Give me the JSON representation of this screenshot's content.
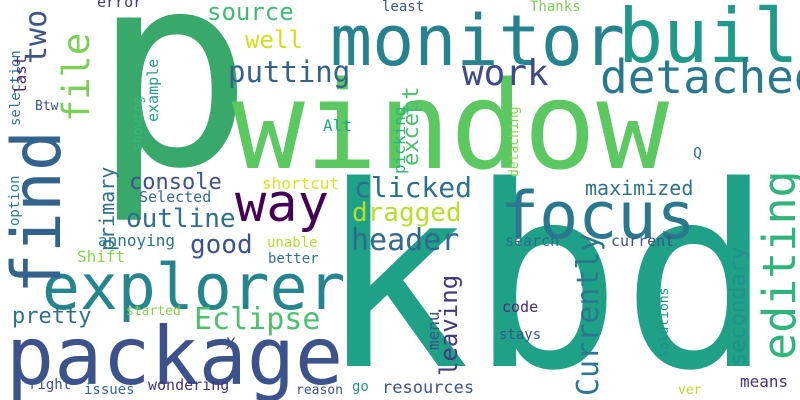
{
  "word_cloud": {
    "background": "#ffffff",
    "words": [
      {
        "text": "p",
        "color": "#39a96b",
        "vertical": false
      },
      {
        "text": "window",
        "color": "#5bc862",
        "vertical": false
      },
      {
        "text": "kbd",
        "color": "#1fa187",
        "vertical": false
      },
      {
        "text": "monitor",
        "color": "#26828e",
        "vertical": false
      },
      {
        "text": "build",
        "color": "#1f9a8a",
        "vertical": false
      },
      {
        "text": "package",
        "color": "#3b528b",
        "vertical": false
      },
      {
        "text": "explorer",
        "color": "#25858e",
        "vertical": false
      },
      {
        "text": "find",
        "color": "#33638d",
        "vertical": true
      },
      {
        "text": "focus",
        "color": "#2a788e",
        "vertical": false
      },
      {
        "text": "detached",
        "color": "#2a788e",
        "vertical": false
      },
      {
        "text": "work",
        "color": "#3e4a89",
        "vertical": false
      },
      {
        "text": "way",
        "color": "#440154",
        "vertical": false
      },
      {
        "text": "editing",
        "color": "#2fb47c",
        "vertical": true
      },
      {
        "text": "putting",
        "color": "#33638d",
        "vertical": false
      },
      {
        "text": "source",
        "color": "#3fbc73",
        "vertical": false
      },
      {
        "text": "file",
        "color": "#7ad151",
        "vertical": true
      },
      {
        "text": "two",
        "color": "#3b528b",
        "vertical": true
      },
      {
        "text": "well",
        "color": "#d0e11c",
        "vertical": false
      },
      {
        "text": "header",
        "color": "#31688e",
        "vertical": false
      },
      {
        "text": "Eclipse",
        "color": "#4ac16d",
        "vertical": false
      },
      {
        "text": "outline",
        "color": "#2d708e",
        "vertical": false
      },
      {
        "text": "good",
        "color": "#3b528b",
        "vertical": false
      },
      {
        "text": "console",
        "color": "#3b528b",
        "vertical": false
      },
      {
        "text": "clicked",
        "color": "#2d708e",
        "vertical": false
      },
      {
        "text": "dragged",
        "color": "#b8de29",
        "vertical": false
      },
      {
        "text": "maximized",
        "color": "#2c728e",
        "vertical": false
      },
      {
        "text": "Currently",
        "color": "#2a788e",
        "vertical": true
      },
      {
        "text": "secondary",
        "color": "#21918c",
        "vertical": true
      },
      {
        "text": "leaving",
        "color": "#453781",
        "vertical": true
      },
      {
        "text": "except",
        "color": "#48c16e",
        "vertical": true
      },
      {
        "text": "primary",
        "color": "#2c728e",
        "vertical": true
      },
      {
        "text": "pretty",
        "color": "#2c728e",
        "vertical": false
      },
      {
        "text": "selection",
        "color": "#2c728e",
        "vertical": true
      },
      {
        "text": "last",
        "color": "#482878",
        "vertical": true
      },
      {
        "text": "Btw",
        "color": "#3b528b",
        "vertical": false
      },
      {
        "text": "example",
        "color": "#1f9e89",
        "vertical": true
      },
      {
        "text": "showing",
        "color": "#35b779",
        "vertical": true
      },
      {
        "text": "option",
        "color": "#26828e",
        "vertical": true
      },
      {
        "text": "error",
        "color": "#46337e",
        "vertical": false
      },
      {
        "text": "least",
        "color": "#3b528b",
        "vertical": false
      },
      {
        "text": "Thanks",
        "color": "#7ad151",
        "vertical": false
      },
      {
        "text": "Alt",
        "color": "#21a585",
        "vertical": false
      },
      {
        "text": "picking",
        "color": "#2fb47c",
        "vertical": true
      },
      {
        "text": "detaching",
        "color": "#86d549",
        "vertical": true
      },
      {
        "text": "shortcut",
        "color": "#dde318",
        "vertical": false
      },
      {
        "text": "Selected",
        "color": "#31688e",
        "vertical": false
      },
      {
        "text": "annoying",
        "color": "#2c728e",
        "vertical": false
      },
      {
        "text": "Shift",
        "color": "#86d549",
        "vertical": false
      },
      {
        "text": "unable",
        "color": "#b5de2b",
        "vertical": false
      },
      {
        "text": "better",
        "color": "#2c728e",
        "vertical": false
      },
      {
        "text": "search",
        "color": "#31688e",
        "vertical": false
      },
      {
        "text": "current",
        "color": "#3b528b",
        "vertical": false
      },
      {
        "text": "Q",
        "color": "#2a788e",
        "vertical": false
      },
      {
        "text": "started",
        "color": "#86d549",
        "vertical": false
      },
      {
        "text": "code",
        "color": "#482878",
        "vertical": false
      },
      {
        "text": "stays",
        "color": "#3b528b",
        "vertical": false
      },
      {
        "text": "menu",
        "color": "#3b528b",
        "vertical": true
      },
      {
        "text": "solutions",
        "color": "#21918c",
        "vertical": true
      },
      {
        "text": "X",
        "color": "#3b528b",
        "vertical": false
      },
      {
        "text": "right",
        "color": "#3b528b",
        "vertical": false
      },
      {
        "text": "issues",
        "color": "#31688e",
        "vertical": false
      },
      {
        "text": "wondering",
        "color": "#46327e",
        "vertical": false
      },
      {
        "text": "reason",
        "color": "#3b528b",
        "vertical": false
      },
      {
        "text": "go",
        "color": "#21918c",
        "vertical": false
      },
      {
        "text": "resources",
        "color": "#3b528b",
        "vertical": false
      },
      {
        "text": "ver",
        "color": "#b5de2b",
        "vertical": false
      },
      {
        "text": "means",
        "color": "#46327e",
        "vertical": false
      }
    ]
  }
}
